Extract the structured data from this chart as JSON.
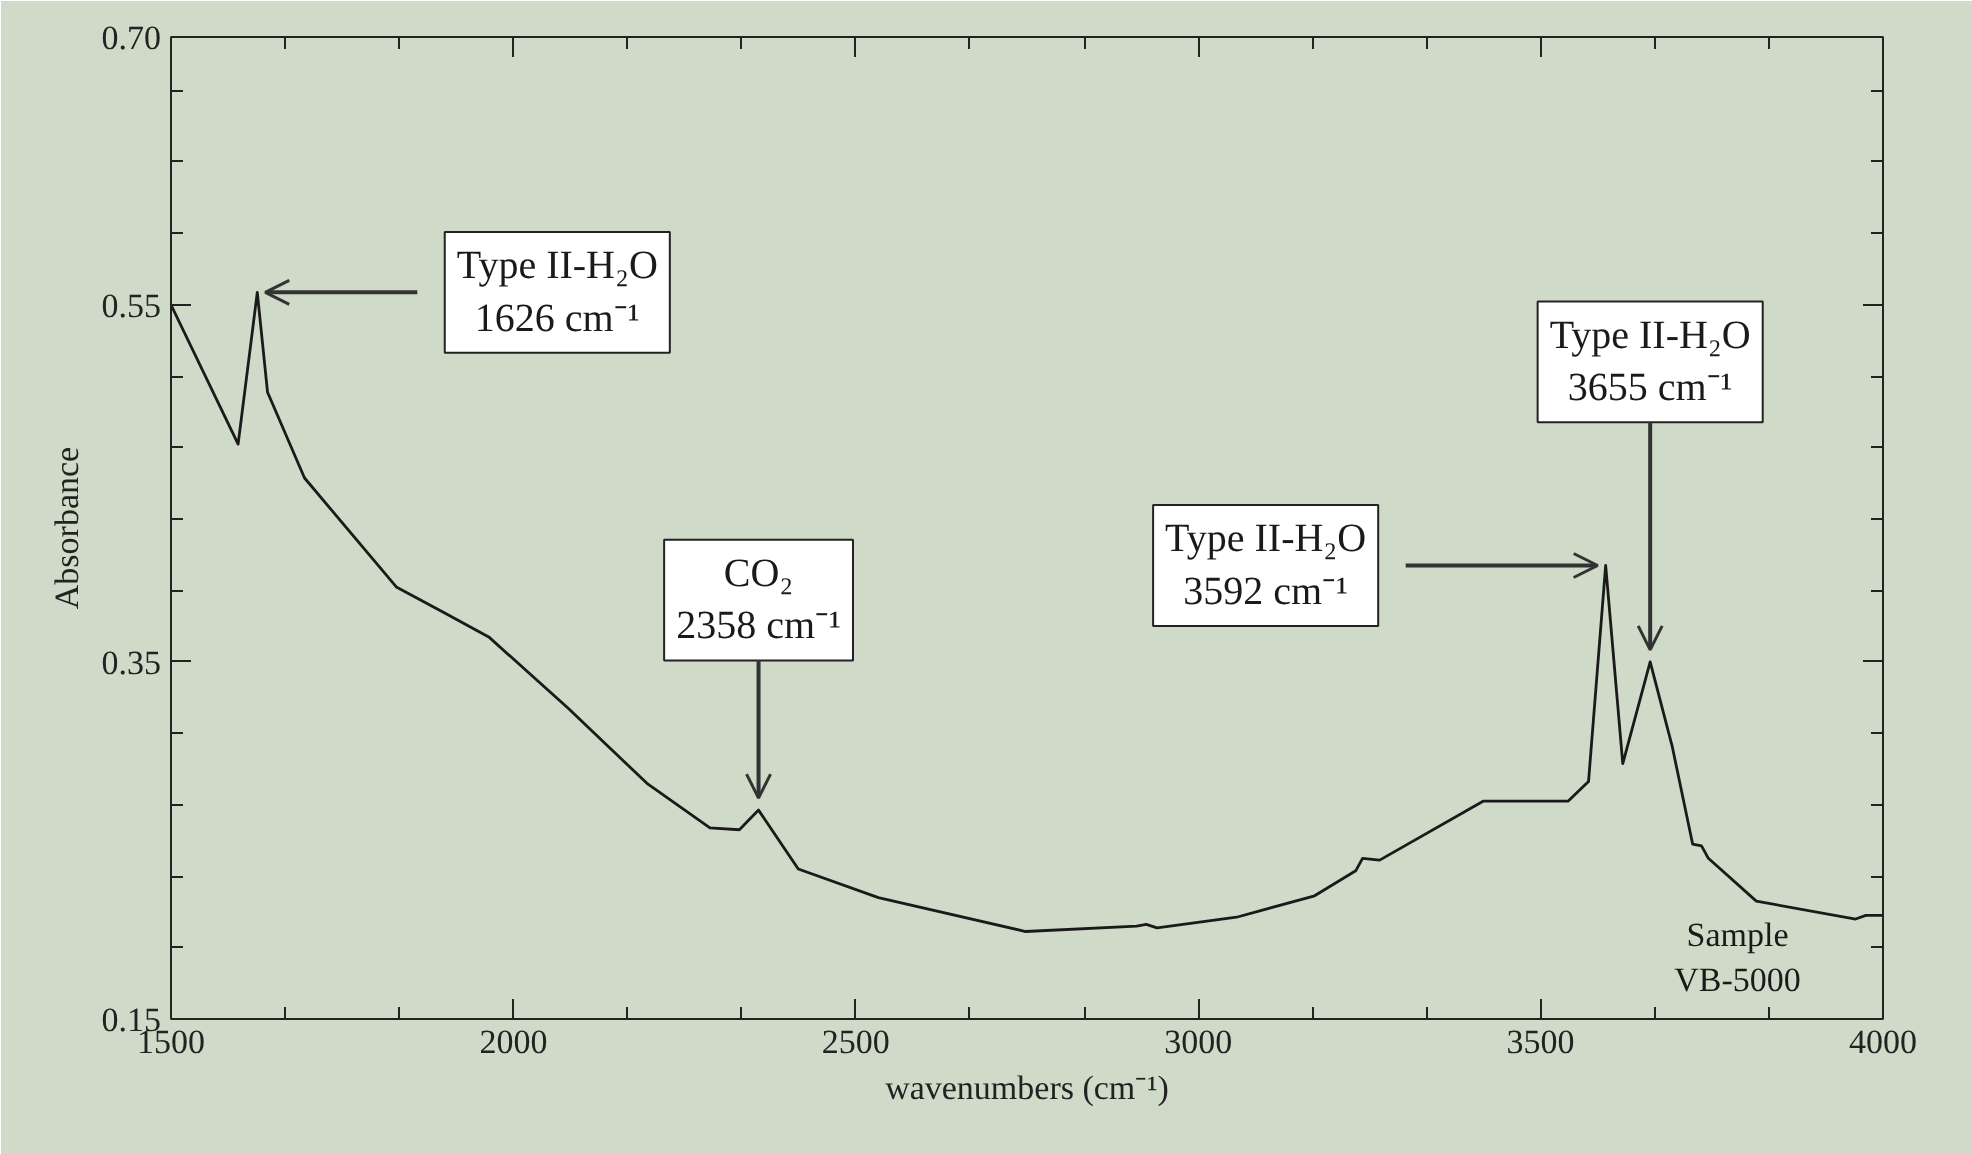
{
  "chart_data": {
    "type": "line",
    "xlabel": "wavenumbers (cm⁻¹)",
    "ylabel": "Absorbance",
    "xlim": [
      1500,
      4000
    ],
    "xticks": [
      1500,
      2000,
      2500,
      3000,
      3500,
      4000
    ],
    "ylim": [
      0.15,
      0.7
    ],
    "yticks": [
      {
        "value": 0.15,
        "label": "0.15"
      },
      {
        "value": 0.35,
        "label": "0.35"
      },
      {
        "value": 0.55,
        "label": "0.55"
      },
      {
        "value": 0.7,
        "label": "0.70"
      }
    ],
    "grid": false,
    "marker": "none",
    "line_style": "solid",
    "series": [
      {
        "color": "#1a1a1a",
        "x": [
          1500,
          1598,
          1626,
          1641,
          1695,
          1829,
          1897,
          1964,
          2080,
          2195,
          2287,
          2330,
          2358,
          2416,
          2533,
          2748,
          2910,
          2924,
          2940,
          3056,
          3170,
          3230,
          3240,
          3265,
          3416,
          3540,
          3570,
          3595,
          3620,
          3660,
          3692,
          3722,
          3735,
          3745,
          3815,
          3960,
          3975,
          4000
        ],
        "values": [
          0.55,
          0.472,
          0.557,
          0.501,
          0.453,
          0.392,
          0.378,
          0.364,
          0.324,
          0.282,
          0.257,
          0.256,
          0.267,
          0.234,
          0.218,
          0.199,
          0.202,
          0.203,
          0.201,
          0.207,
          0.219,
          0.233,
          0.24,
          0.239,
          0.272,
          0.272,
          0.283,
          0.404,
          0.293,
          0.35,
          0.303,
          0.248,
          0.247,
          0.24,
          0.216,
          0.206,
          0.208,
          0.208
        ]
      }
    ],
    "annotations": [
      {
        "text": "Type II-H₂O\n1626 cm⁻¹",
        "x": 1626,
        "y": 0.557
      },
      {
        "text": "CO₂\n2358 cm⁻¹",
        "x": 2358,
        "y": 0.267
      },
      {
        "text": "Type II-H₂O\n3592 cm⁻¹",
        "x": 3595,
        "y": 0.404
      },
      {
        "text": "Type II-H₂O\n3655 cm⁻¹",
        "x": 3660,
        "y": 0.35
      },
      "Sample\nVB-5000"
    ]
  }
}
